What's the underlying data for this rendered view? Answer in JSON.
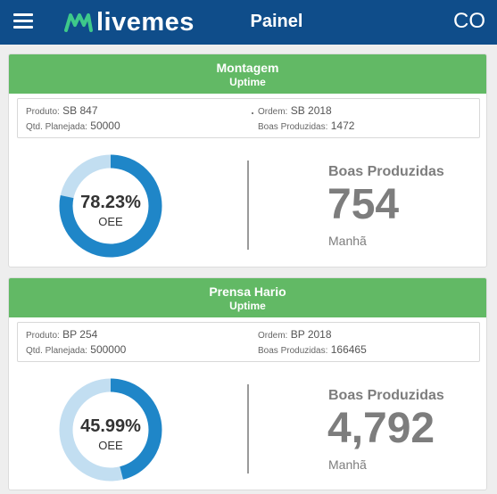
{
  "header": {
    "logo_text": "livemes",
    "title": "Painel",
    "user_initials": "CO",
    "colors": {
      "bar": "#0f4d8a",
      "logo_mark": "#3ec98a"
    }
  },
  "cards": [
    {
      "title": "Montagem",
      "status": "Uptime",
      "status_color": "#62b965",
      "produto_label": "Produto:",
      "produto": "SB 847",
      "qtd_label": "Qtd. Planejada:",
      "qtd_planejada": "50000",
      "ordem_label": "Ordem:",
      "ordem": "SB 2018",
      "boas_label": "Boas Produzidas:",
      "boas_produzidas": "1472",
      "oee_value": "78.23%",
      "oee_label": "OEE",
      "oee_fraction": 0.7823,
      "kpi_label": "Boas Produzidas",
      "kpi_value": "754",
      "shift": "Manhã"
    },
    {
      "title": "Prensa Hario",
      "status": "Uptime",
      "status_color": "#62b965",
      "produto_label": "Produto:",
      "produto": "BP 254",
      "qtd_label": "Qtd. Planejada:",
      "qtd_planejada": "500000",
      "ordem_label": "Ordem:",
      "ordem": "BP 2018",
      "boas_label": "Boas Produzidas:",
      "boas_produzidas": "166465",
      "oee_value": "45.99%",
      "oee_label": "OEE",
      "oee_fraction": 0.4599,
      "kpi_label": "Boas Produzidas",
      "kpi_value": "4,792",
      "shift": "Manhã"
    }
  ],
  "gauge_colors": {
    "fill": "#1f86c8",
    "track": "#c2def1"
  }
}
